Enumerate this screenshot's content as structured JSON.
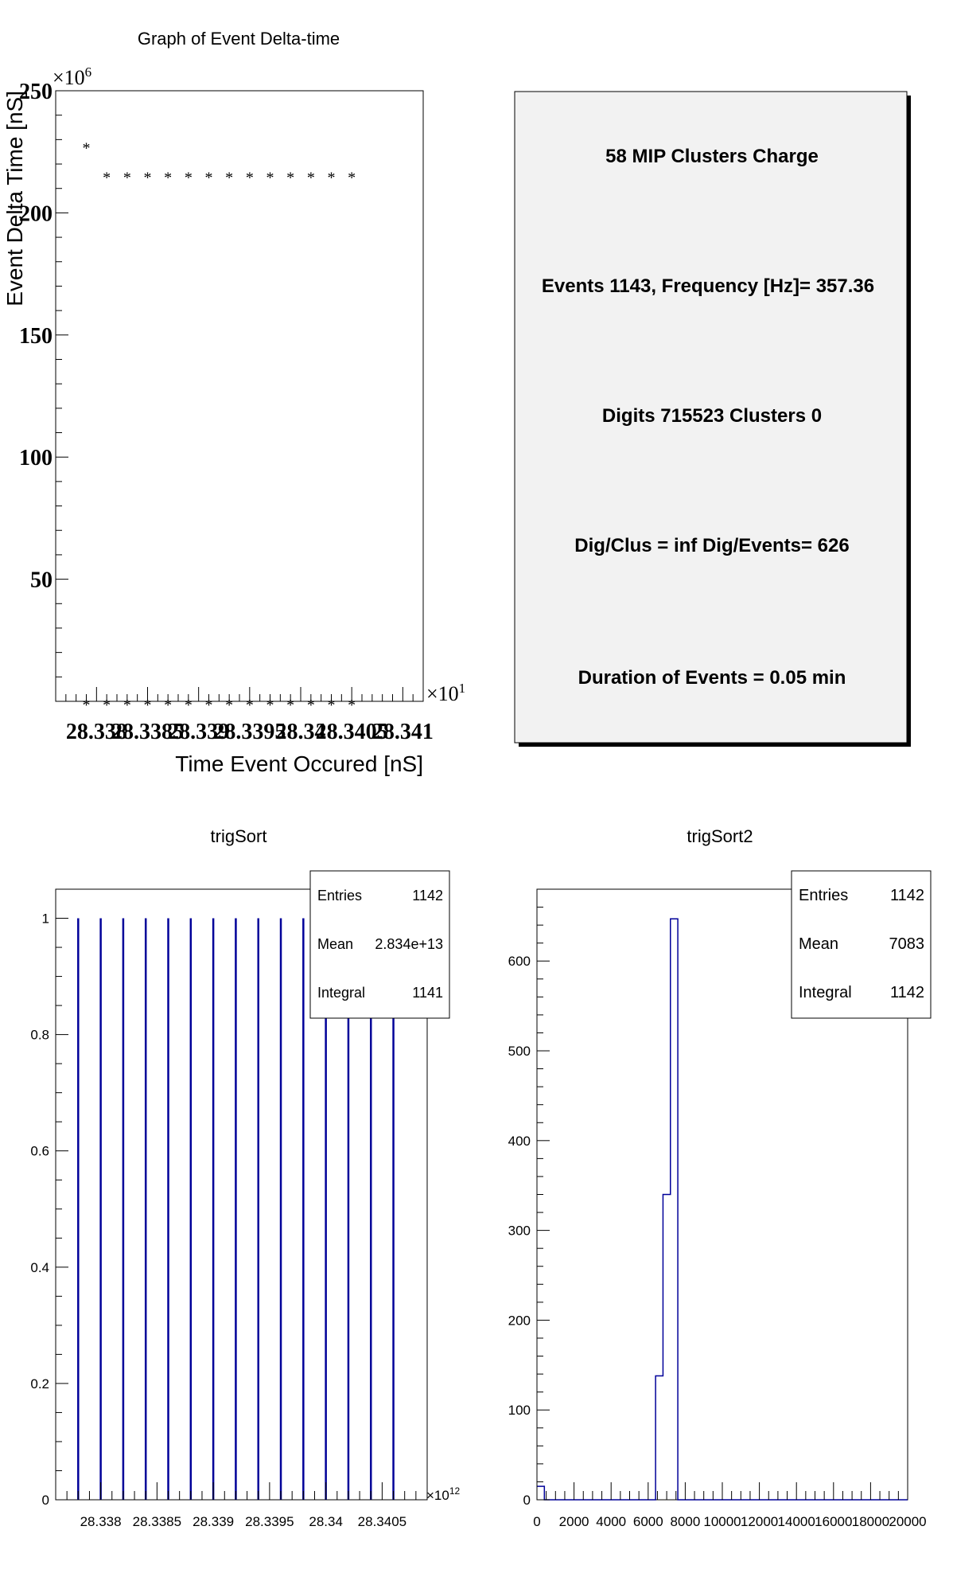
{
  "chart_data": [
    {
      "type": "scatter",
      "title": "Graph of Event Delta-time",
      "xlabel": "Time Event Occured [nS]",
      "ylabel": "Event Delta Time [nS]",
      "x_exponent_label": "×10",
      "x_exponent_power": "1",
      "y_exponent_label": "×10",
      "y_exponent_power": "6",
      "xlim": [
        28.3376,
        28.3412
      ],
      "ylim": [
        0,
        250
      ],
      "x_tick_labels": [
        "28.338",
        "28.3385",
        "28.339",
        "28.3395",
        "28.34",
        "28.3405",
        "28.341"
      ],
      "x_tick_values": [
        28.338,
        28.3385,
        28.339,
        28.3395,
        28.34,
        28.3405,
        28.341
      ],
      "y_tick_labels": [
        "50",
        "100",
        "150",
        "200",
        "250"
      ],
      "y_tick_values": [
        50,
        100,
        150,
        200,
        250
      ],
      "marker": "*",
      "series": [
        {
          "x": [
            28.3379,
            28.3381,
            28.3383,
            28.3385,
            28.3387,
            28.3389,
            28.3391,
            28.3393,
            28.3395,
            28.3397,
            28.3399,
            28.3401,
            28.3403,
            28.3405
          ],
          "y": [
            228,
            216,
            216,
            216,
            216,
            216,
            216,
            216,
            216,
            216,
            216,
            216,
            216,
            216
          ]
        },
        {
          "x": [
            28.3379,
            28.3381,
            28.3383,
            28.3385,
            28.3387,
            28.3389,
            28.3391,
            28.3393,
            28.3395,
            28.3397,
            28.3399,
            28.3401,
            28.3403,
            28.3405
          ],
          "y": [
            0,
            0,
            0,
            0,
            0,
            0,
            0,
            0,
            0,
            0,
            0,
            0,
            0,
            0
          ]
        }
      ]
    },
    {
      "type": "bar",
      "title": "trigSort",
      "xlabel": "",
      "ylabel": "",
      "x_exponent_label": "×10",
      "x_exponent_power": "12",
      "xlim": [
        28.3376,
        28.3409
      ],
      "ylim": [
        0,
        1.05
      ],
      "x_tick_labels": [
        "28.338",
        "28.3385",
        "28.339",
        "28.3395",
        "28.34",
        "28.3405"
      ],
      "x_tick_values": [
        28.338,
        28.3385,
        28.339,
        28.3395,
        28.34,
        28.3405
      ],
      "y_tick_labels": [
        "0",
        "0.2",
        "0.4",
        "0.6",
        "0.8",
        "1"
      ],
      "y_tick_values": [
        0,
        0.2,
        0.4,
        0.6,
        0.8,
        1
      ],
      "line_color": "#000099",
      "spikes_x": [
        28.3378,
        28.338,
        28.3382,
        28.3384,
        28.3386,
        28.3388,
        28.339,
        28.3392,
        28.3394,
        28.3396,
        28.3398,
        28.34,
        28.3402,
        28.3404,
        28.3406
      ],
      "spikes_y": [
        1,
        1,
        1,
        1,
        1,
        1,
        1,
        1,
        1,
        1,
        1,
        1,
        1,
        1,
        1
      ],
      "stats": {
        "entries_label": "Entries",
        "entries": "1142",
        "mean_label": "Mean",
        "mean": "2.834e+13",
        "integral_label": "Integral",
        "integral": "1141"
      }
    },
    {
      "type": "bar",
      "title": "trigSort2",
      "xlabel": "",
      "ylabel": "",
      "xlim": [
        0,
        20000
      ],
      "ylim": [
        0,
        680
      ],
      "x_tick_labels": [
        "0",
        "2000",
        "4000",
        "6000",
        "8000",
        "10000",
        "12000",
        "14000",
        "16000",
        "18000",
        "20000"
      ],
      "x_tick_values": [
        0,
        2000,
        4000,
        6000,
        8000,
        10000,
        12000,
        14000,
        16000,
        18000,
        20000
      ],
      "y_tick_labels": [
        "0",
        "100",
        "200",
        "300",
        "400",
        "500",
        "600"
      ],
      "y_tick_values": [
        0,
        100,
        200,
        300,
        400,
        500,
        600
      ],
      "line_color": "#000099",
      "bin_edges": [
        0,
        400,
        6000,
        6400,
        6800,
        7200,
        7600
      ],
      "bin_values": [
        15,
        0,
        0,
        138,
        340,
        647,
        647
      ],
      "stats": {
        "entries_label": "Entries",
        "entries": "1142",
        "mean_label": "Mean",
        "mean": "7083",
        "integral_label": "Integral",
        "integral": "1142"
      }
    }
  ],
  "info_panel": {
    "lines": [
      "58 MIP Clusters Charge",
      "Events 1143, Frequency [Hz]= 357.36",
      "Digits 715523 Clusters 0",
      "Dig/Clus = inf Dig/Events= 626",
      "Duration of Events = 0.05 min"
    ],
    "background": "#f2f2f2"
  }
}
